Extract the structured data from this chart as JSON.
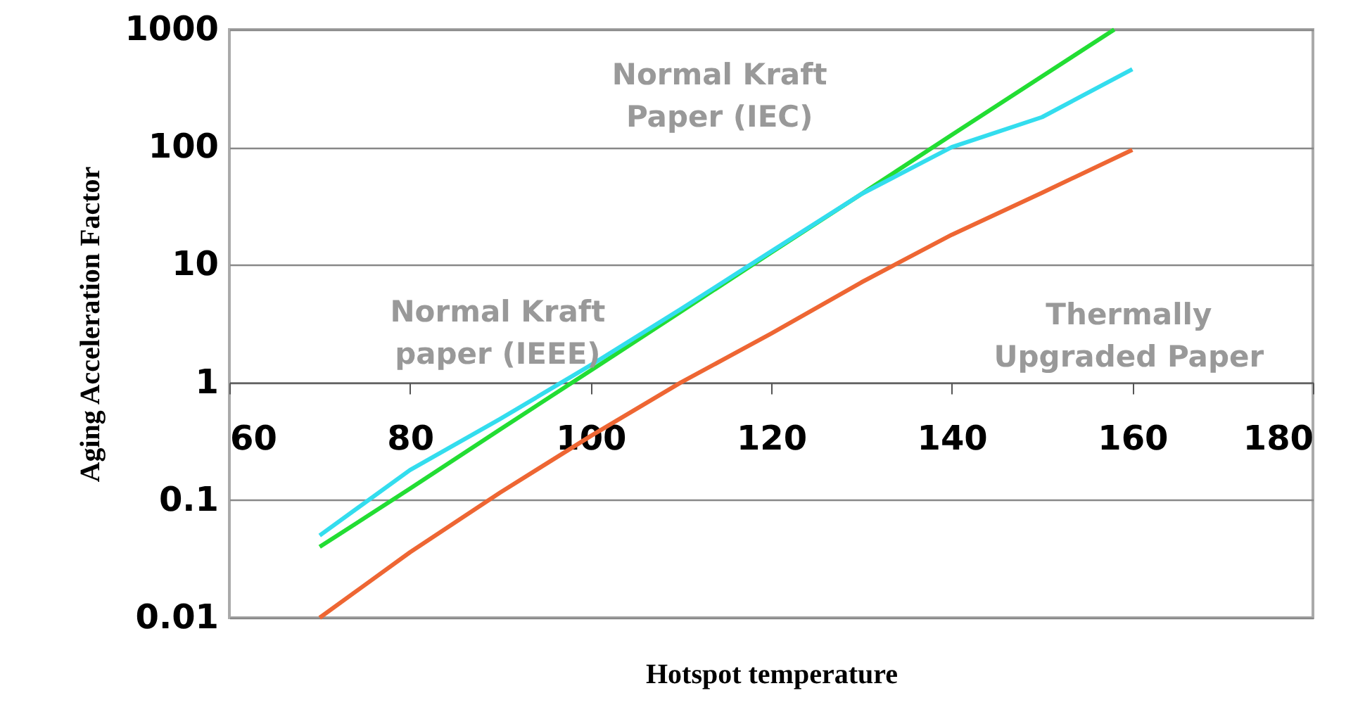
{
  "chart_data": {
    "type": "line",
    "xlabel": "Hotspot temperature",
    "ylabel": "Aging Acceleration Factor",
    "log": "y",
    "grid": "y",
    "xlim": [
      60,
      180
    ],
    "xticks": [
      60,
      80,
      100,
      120,
      140,
      160,
      180
    ],
    "ylim": [
      0.01,
      1000
    ],
    "yticks": [
      0.01,
      0.1,
      1,
      10,
      100,
      1000
    ],
    "x": [
      70,
      80,
      90,
      100,
      110,
      120,
      130,
      140,
      150,
      160
    ],
    "series": [
      {
        "name": "Normal Kraft Paper (IEC)",
        "color": "#22dd33",
        "x": [
          70,
          80,
          90,
          100,
          110,
          120,
          130,
          140,
          150,
          158
        ],
        "values": [
          0.04,
          0.125,
          0.4,
          1.26,
          4,
          12.7,
          40,
          127,
          400,
          1000
        ]
      },
      {
        "name": "Normal Kraft paper (IEEE)",
        "color": "#33ddee",
        "values": [
          0.05,
          0.18,
          0.49,
          1.4,
          4.2,
          13,
          40,
          100,
          180,
          460
        ]
      },
      {
        "name": "Thermally Upgraded Paper",
        "color": "#ee6633",
        "values": [
          0.01,
          0.036,
          0.116,
          0.35,
          1,
          2.6,
          7.1,
          18,
          41,
          95
        ]
      }
    ]
  }
}
